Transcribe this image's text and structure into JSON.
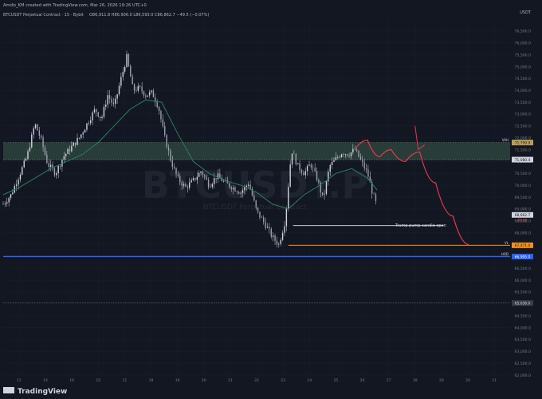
{
  "header": {
    "created_by": "Amdis_KM created with TradingView.com, Mar 26, 2026 19:26 UTC+0",
    "symbol_line": "BTCUSDT Perpetual Contract · 15 · Bybit",
    "ohlc": "O86,911.8 H86,906.0 L86,593.0 C86,862.7 −49.5 (−0.07%)",
    "currency": "USDT"
  },
  "watermark": "BTCUSDT.P",
  "watermark_sub": "BTCUSDT Perpetual Contract",
  "footer": {
    "brand": "TradingView"
  },
  "annotation": {
    "text": "Trump pump candle open"
  },
  "colors": {
    "background": "#131722",
    "candles": "#d1d4dc",
    "ma_line": "#2e7d5b",
    "zone": "#3b5b4c",
    "projection": "#e53950",
    "orange_level": "#f5901e",
    "blue_level": "#2962ff"
  },
  "level_tags": {
    "zone_top": "71,799.9",
    "zone_bottom": "71,080.4",
    "current_price": "68,662.7",
    "current_timer": "09:00",
    "orange": "67,471.0",
    "blue": "66,995.0",
    "dashed": "65,036.0"
  },
  "level_labels": {
    "zone_top": "VAH",
    "orange": "VL",
    "blue": "HOD"
  },
  "chart_data": {
    "type": "line",
    "ylim": [
      62000,
      77000
    ],
    "x_ticks": [
      "12",
      "14",
      "16",
      "15",
      "11",
      "18",
      "19",
      "20",
      "21",
      "22",
      "23",
      "24",
      "25",
      "26",
      "27",
      "28",
      "29",
      "20",
      "21"
    ],
    "y_ticks": [
      "76,500.0",
      "76,000.0",
      "75,500.0",
      "75,000.0",
      "74,500.0",
      "74,000.0",
      "73,500.0",
      "73,000.0",
      "72,500.0",
      "72,000.0",
      "71,500.0",
      "71,000.0",
      "70,500.0",
      "70,000.0",
      "69,500.0",
      "69,000.0",
      "68,500.0",
      "68,000.0",
      "67,500.0",
      "67,000.0",
      "66,500.0",
      "66,000.0",
      "65,500.0",
      "65,000.0",
      "64,500.0",
      "64,000.0",
      "63,500.0",
      "63,000.0",
      "62,500.0",
      "62,000.0"
    ],
    "price_path": [
      [
        0,
        69200
      ],
      [
        0.5,
        69600
      ],
      [
        1,
        70400
      ],
      [
        1.5,
        71200
      ],
      [
        2,
        72600
      ],
      [
        2.4,
        71900
      ],
      [
        2.8,
        70900
      ],
      [
        3.3,
        70500
      ],
      [
        3.8,
        71200
      ],
      [
        4.3,
        71600
      ],
      [
        4.8,
        72000
      ],
      [
        5.3,
        72600
      ],
      [
        5.8,
        73200
      ],
      [
        6.2,
        72800
      ],
      [
        6.6,
        73800
      ],
      [
        7.0,
        73300
      ],
      [
        7.4,
        74400
      ],
      [
        7.8,
        75400
      ],
      [
        8.2,
        74000
      ],
      [
        8.6,
        74100
      ],
      [
        9.0,
        73800
      ],
      [
        9.4,
        73900
      ],
      [
        9.8,
        73300
      ],
      [
        10.2,
        72000
      ],
      [
        10.6,
        71000
      ],
      [
        11.0,
        70300
      ],
      [
        11.5,
        69900
      ],
      [
        12.0,
        70200
      ],
      [
        12.5,
        70600
      ],
      [
        13.0,
        70000
      ],
      [
        13.5,
        70400
      ],
      [
        14.0,
        70100
      ],
      [
        14.5,
        69900
      ],
      [
        15.0,
        69700
      ],
      [
        15.5,
        70100
      ],
      [
        16.0,
        68900
      ],
      [
        16.5,
        68400
      ],
      [
        17.0,
        67800
      ],
      [
        17.4,
        67500
      ],
      [
        17.8,
        68500
      ],
      [
        18.2,
        71500
      ],
      [
        18.6,
        70800
      ],
      [
        19.0,
        70500
      ],
      [
        19.4,
        70900
      ],
      [
        19.8,
        70300
      ],
      [
        20.2,
        69400
      ],
      [
        20.6,
        70800
      ],
      [
        21.0,
        71100
      ],
      [
        21.4,
        71400
      ],
      [
        21.8,
        71300
      ],
      [
        22.2,
        71500
      ],
      [
        22.6,
        71000
      ],
      [
        23.0,
        70500
      ],
      [
        23.3,
        69700
      ],
      [
        23.6,
        69100
      ]
    ],
    "ma_path": [
      [
        0,
        69600
      ],
      [
        1,
        69900
      ],
      [
        2,
        70300
      ],
      [
        3,
        70700
      ],
      [
        4,
        71000
      ],
      [
        5,
        71300
      ],
      [
        6,
        71800
      ],
      [
        7,
        72500
      ],
      [
        8,
        73200
      ],
      [
        9,
        73600
      ],
      [
        10,
        73500
      ],
      [
        11,
        72200
      ],
      [
        12,
        71000
      ],
      [
        13,
        70500
      ],
      [
        14,
        70200
      ],
      [
        15,
        70000
      ],
      [
        16,
        69700
      ],
      [
        17,
        69200
      ],
      [
        18,
        69000
      ],
      [
        19,
        69600
      ],
      [
        20,
        70000
      ],
      [
        21,
        70500
      ],
      [
        22,
        70700
      ],
      [
        23,
        70300
      ],
      [
        23.6,
        69800
      ]
    ],
    "projection_path": [
      [
        22.3,
        71600
      ],
      [
        23.0,
        71900
      ],
      [
        23.8,
        71200
      ],
      [
        24.5,
        71500
      ],
      [
        25.4,
        71000
      ],
      [
        26.3,
        71400
      ],
      [
        27.3,
        70100
      ],
      [
        28.4,
        68700
      ],
      [
        29.4,
        67500
      ]
    ],
    "projection_arrow": [
      [
        26.0,
        72500
      ],
      [
        26.2,
        71500
      ],
      [
        26.6,
        71700
      ]
    ],
    "pump_level": {
      "price": 68300,
      "x_start": 18.3,
      "x_end": 27.8
    },
    "zone": {
      "low": 71080,
      "high": 71800
    },
    "orange_level": {
      "price": 67470,
      "x_start": 18.0
    },
    "blue_level": {
      "price": 66995
    },
    "dashed_level": {
      "price": 65036
    }
  }
}
